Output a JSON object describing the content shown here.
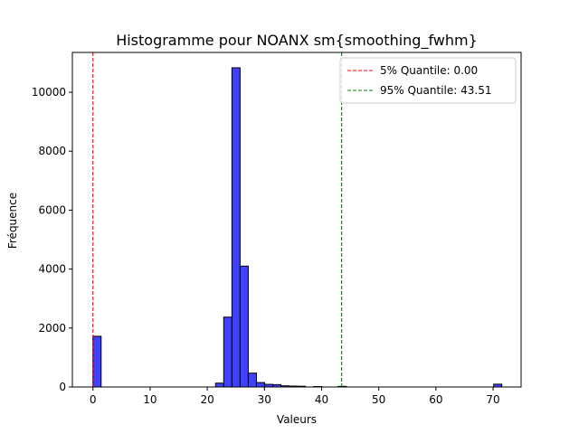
{
  "chart_data": {
    "type": "bar",
    "title": "Histogramme pour NOANX sm{smoothing_fwhm}",
    "xlabel": "Valeurs",
    "ylabel": "Fréquence",
    "xlim": [
      -3.6,
      74.9
    ],
    "ylim": [
      0,
      11350
    ],
    "xticks": [
      0,
      10,
      20,
      30,
      40,
      50,
      60,
      70
    ],
    "yticks": [
      0,
      2000,
      4000,
      6000,
      8000,
      10000
    ],
    "bar_color": "#0000ff",
    "bar_edge_color": "#000000",
    "bins": [
      {
        "start": 0.0,
        "end": 1.43,
        "count": 1720
      },
      {
        "start": 21.45,
        "end": 22.88,
        "count": 130
      },
      {
        "start": 22.88,
        "end": 24.31,
        "count": 2370
      },
      {
        "start": 24.31,
        "end": 25.74,
        "count": 10830
      },
      {
        "start": 25.74,
        "end": 27.17,
        "count": 4100
      },
      {
        "start": 27.17,
        "end": 28.6,
        "count": 470
      },
      {
        "start": 28.6,
        "end": 30.03,
        "count": 150
      },
      {
        "start": 30.03,
        "end": 31.46,
        "count": 90
      },
      {
        "start": 31.46,
        "end": 32.89,
        "count": 80
      },
      {
        "start": 32.89,
        "end": 34.32,
        "count": 40
      },
      {
        "start": 34.32,
        "end": 35.75,
        "count": 30
      },
      {
        "start": 35.75,
        "end": 37.18,
        "count": 25
      },
      {
        "start": 38.61,
        "end": 40.04,
        "count": 15
      },
      {
        "start": 42.9,
        "end": 44.33,
        "count": 20
      },
      {
        "start": 70.1,
        "end": 71.53,
        "count": 95
      }
    ],
    "lines": [
      {
        "x": 0.0,
        "color": "#ff0000",
        "label": "5% Quantile: 0.00"
      },
      {
        "x": 43.51,
        "color": "#008000",
        "label": "95% Quantile: 43.51"
      }
    ],
    "legend_position": "top-right"
  }
}
